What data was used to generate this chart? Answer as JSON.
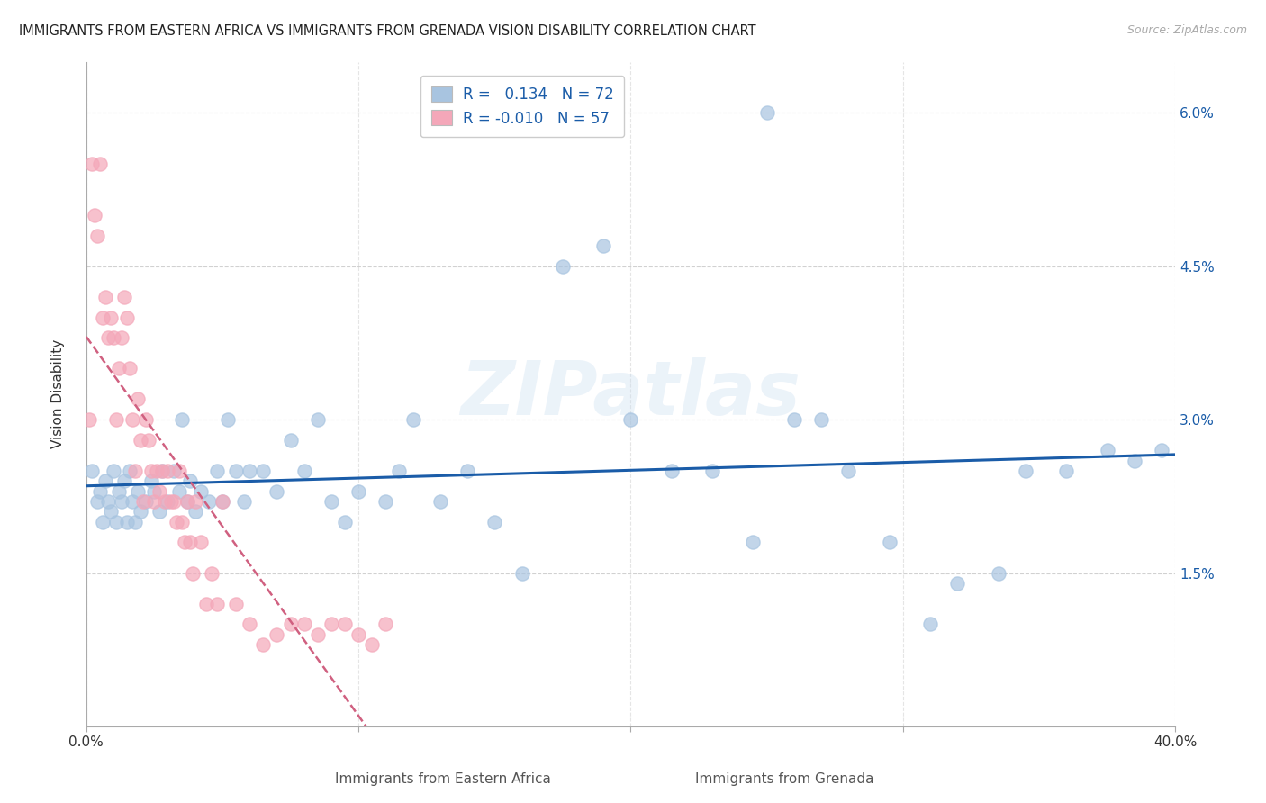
{
  "title": "IMMIGRANTS FROM EASTERN AFRICA VS IMMIGRANTS FROM GRENADA VISION DISABILITY CORRELATION CHART",
  "source": "Source: ZipAtlas.com",
  "xlabel_bottom": [
    "Immigrants from Eastern Africa",
    "Immigrants from Grenada"
  ],
  "ylabel": "Vision Disability",
  "xlim": [
    0.0,
    0.4
  ],
  "ylim": [
    0.0,
    0.065
  ],
  "R_blue": 0.134,
  "N_blue": 72,
  "R_pink": -0.01,
  "N_pink": 57,
  "blue_color": "#a8c4e0",
  "pink_color": "#f4a7b9",
  "line_blue": "#1a5ca8",
  "line_pink": "#d06080",
  "watermark": "ZIPatlas",
  "blue_x": [
    0.002,
    0.004,
    0.005,
    0.006,
    0.007,
    0.008,
    0.009,
    0.01,
    0.011,
    0.012,
    0.013,
    0.014,
    0.015,
    0.016,
    0.017,
    0.018,
    0.019,
    0.02,
    0.022,
    0.024,
    0.025,
    0.027,
    0.028,
    0.03,
    0.032,
    0.034,
    0.035,
    0.037,
    0.038,
    0.04,
    0.042,
    0.045,
    0.048,
    0.05,
    0.052,
    0.055,
    0.058,
    0.06,
    0.065,
    0.07,
    0.075,
    0.08,
    0.085,
    0.09,
    0.095,
    0.1,
    0.11,
    0.115,
    0.12,
    0.13,
    0.14,
    0.15,
    0.16,
    0.175,
    0.19,
    0.2,
    0.215,
    0.23,
    0.245,
    0.25,
    0.26,
    0.27,
    0.28,
    0.295,
    0.31,
    0.32,
    0.335,
    0.345,
    0.36,
    0.375,
    0.385,
    0.395
  ],
  "blue_y": [
    0.025,
    0.022,
    0.023,
    0.02,
    0.024,
    0.022,
    0.021,
    0.025,
    0.02,
    0.023,
    0.022,
    0.024,
    0.02,
    0.025,
    0.022,
    0.02,
    0.023,
    0.021,
    0.022,
    0.024,
    0.023,
    0.021,
    0.025,
    0.022,
    0.025,
    0.023,
    0.03,
    0.022,
    0.024,
    0.021,
    0.023,
    0.022,
    0.025,
    0.022,
    0.03,
    0.025,
    0.022,
    0.025,
    0.025,
    0.023,
    0.028,
    0.025,
    0.03,
    0.022,
    0.02,
    0.023,
    0.022,
    0.025,
    0.03,
    0.022,
    0.025,
    0.02,
    0.015,
    0.045,
    0.047,
    0.03,
    0.025,
    0.025,
    0.018,
    0.06,
    0.03,
    0.03,
    0.025,
    0.018,
    0.01,
    0.014,
    0.015,
    0.025,
    0.025,
    0.027,
    0.026,
    0.027
  ],
  "pink_x": [
    0.001,
    0.002,
    0.003,
    0.004,
    0.005,
    0.006,
    0.007,
    0.008,
    0.009,
    0.01,
    0.011,
    0.012,
    0.013,
    0.014,
    0.015,
    0.016,
    0.017,
    0.018,
    0.019,
    0.02,
    0.021,
    0.022,
    0.023,
    0.024,
    0.025,
    0.026,
    0.027,
    0.028,
    0.029,
    0.03,
    0.031,
    0.032,
    0.033,
    0.034,
    0.035,
    0.036,
    0.037,
    0.038,
    0.039,
    0.04,
    0.042,
    0.044,
    0.046,
    0.048,
    0.05,
    0.055,
    0.06,
    0.065,
    0.07,
    0.075,
    0.08,
    0.085,
    0.09,
    0.095,
    0.1,
    0.105,
    0.11
  ],
  "pink_y": [
    0.03,
    0.055,
    0.05,
    0.048,
    0.055,
    0.04,
    0.042,
    0.038,
    0.04,
    0.038,
    0.03,
    0.035,
    0.038,
    0.042,
    0.04,
    0.035,
    0.03,
    0.025,
    0.032,
    0.028,
    0.022,
    0.03,
    0.028,
    0.025,
    0.022,
    0.025,
    0.023,
    0.025,
    0.022,
    0.025,
    0.022,
    0.022,
    0.02,
    0.025,
    0.02,
    0.018,
    0.022,
    0.018,
    0.015,
    0.022,
    0.018,
    0.012,
    0.015,
    0.012,
    0.022,
    0.012,
    0.01,
    0.008,
    0.009,
    0.01,
    0.01,
    0.009,
    0.01,
    0.01,
    0.009,
    0.008,
    0.01
  ]
}
